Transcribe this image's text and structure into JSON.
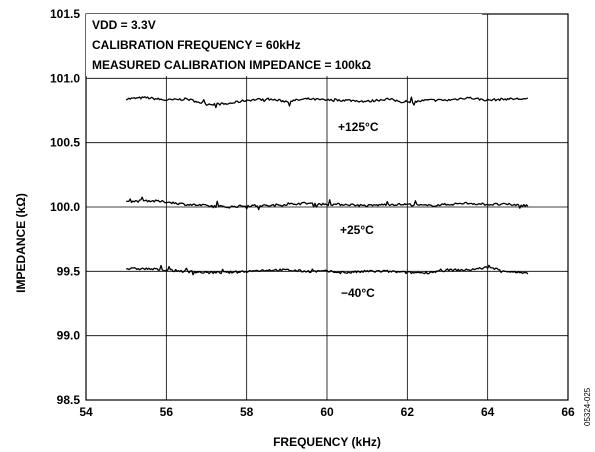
{
  "chart_data": {
    "type": "line",
    "xlabel": "FREQUENCY (kHz)",
    "ylabel": "IMPEDANCE (kΩ)",
    "xlim": [
      54,
      66
    ],
    "ylim": [
      98.5,
      101.5
    ],
    "x_ticks": [
      "54",
      "56",
      "58",
      "60",
      "62",
      "64",
      "66"
    ],
    "y_ticks": [
      "98.5",
      "99.0",
      "99.5",
      "100.0",
      "100.5",
      "101.0",
      "101.5"
    ],
    "grid": true,
    "annotations": [
      "VDD = 3.3V",
      "CALIBRATION FREQUENCY = 60kHz",
      "MEASURED CALIBRATION IMPEDANCE = 100kΩ"
    ],
    "series": [
      {
        "label": "+125°C",
        "x": [
          55,
          55.5,
          56,
          56.5,
          57,
          57.5,
          58,
          58.5,
          59,
          59.5,
          60,
          60.5,
          61,
          61.5,
          62,
          62.5,
          63,
          63.5,
          64,
          64.5,
          65
        ],
        "y": [
          100.84,
          100.85,
          100.83,
          100.84,
          100.8,
          100.8,
          100.83,
          100.84,
          100.82,
          100.84,
          100.83,
          100.83,
          100.82,
          100.84,
          100.81,
          100.83,
          100.83,
          100.85,
          100.83,
          100.84,
          100.84
        ]
      },
      {
        "label": "+25°C",
        "x": [
          55,
          55.5,
          56,
          56.5,
          57,
          57.5,
          58,
          58.5,
          59,
          59.5,
          60,
          60.5,
          61,
          61.5,
          62,
          62.5,
          63,
          63.5,
          64,
          64.5,
          65
        ],
        "y": [
          100.04,
          100.05,
          100.04,
          100.02,
          100.01,
          100.0,
          100.01,
          100.01,
          100.02,
          100.03,
          100.02,
          100.02,
          100.01,
          100.02,
          100.02,
          100.01,
          100.02,
          100.03,
          100.02,
          100.02,
          100.01
        ]
      },
      {
        "label": "−40°C",
        "x": [
          55,
          55.5,
          56,
          56.5,
          57,
          57.5,
          58,
          58.5,
          59,
          59.5,
          60,
          60.5,
          61,
          61.5,
          62,
          62.5,
          63,
          63.5,
          64,
          64.5,
          65
        ],
        "y": [
          99.52,
          99.52,
          99.51,
          99.5,
          99.49,
          99.49,
          99.5,
          99.51,
          99.51,
          99.5,
          99.5,
          99.49,
          99.5,
          99.5,
          99.49,
          99.49,
          99.51,
          99.51,
          99.53,
          99.5,
          99.48
        ]
      }
    ],
    "figure_id": "05324-025"
  }
}
